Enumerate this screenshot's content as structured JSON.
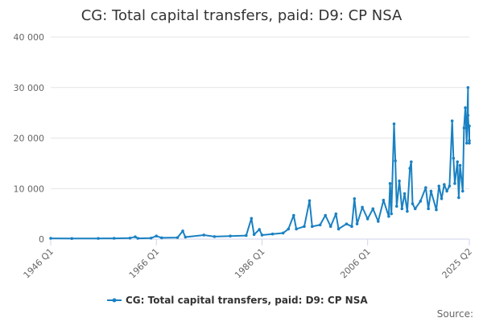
{
  "chart_data": {
    "type": "line",
    "title": "CG: Total capital transfers, paid: D9: CP NSA",
    "xlabel": "",
    "ylabel": "",
    "x_range": [
      "1946 Q1",
      "2025 Q2"
    ],
    "x_tick_labels": [
      "1946 Q1",
      "1966 Q1",
      "1986 Q1",
      "2006 Q1",
      "2025 Q2"
    ],
    "y_ticks": [
      0,
      10000,
      20000,
      30000,
      40000
    ],
    "y_tick_labels": [
      "0",
      "10 000",
      "20 000",
      "30 000",
      "40 000"
    ],
    "ylim": [
      0,
      40000
    ],
    "grid": true,
    "legend_position": "bottom",
    "colors": {
      "series": "#1a81c2"
    },
    "series": [
      {
        "name": "CG: Total capital transfers, paid: D9: CP NSA",
        "points": [
          [
            "1946 Q1",
            150
          ],
          [
            "1950 Q1",
            120
          ],
          [
            "1955 Q1",
            130
          ],
          [
            "1958 Q1",
            150
          ],
          [
            "1961 Q1",
            200
          ],
          [
            "1962 Q1",
            450
          ],
          [
            "1962 Q3",
            150
          ],
          [
            "1965 Q1",
            200
          ],
          [
            "1966 Q1",
            600
          ],
          [
            "1967 Q1",
            250
          ],
          [
            "1970 Q1",
            300
          ],
          [
            "1971 Q1",
            1600
          ],
          [
            "1971 Q3",
            400
          ],
          [
            "1975 Q1",
            800
          ],
          [
            "1977 Q1",
            500
          ],
          [
            "1980 Q1",
            600
          ],
          [
            "1983 Q1",
            700
          ],
          [
            "1984 Q1",
            4100
          ],
          [
            "1984 Q3",
            900
          ],
          [
            "1985 Q3",
            1900
          ],
          [
            "1986 Q1",
            800
          ],
          [
            "1988 Q1",
            1000
          ],
          [
            "1990 Q1",
            1200
          ],
          [
            "1991 Q1",
            2000
          ],
          [
            "1992 Q1",
            4700
          ],
          [
            "1992 Q3",
            2000
          ],
          [
            "1994 Q1",
            2500
          ],
          [
            "1995 Q1",
            7600
          ],
          [
            "1995 Q3",
            2500
          ],
          [
            "1997 Q1",
            2800
          ],
          [
            "1998 Q1",
            4700
          ],
          [
            "1999 Q1",
            2500
          ],
          [
            "2000 Q1",
            5000
          ],
          [
            "2000 Q3",
            2000
          ],
          [
            "2002 Q1",
            3000
          ],
          [
            "2003 Q1",
            2500
          ],
          [
            "2003 Q3",
            8000
          ],
          [
            "2004 Q1",
            3000
          ],
          [
            "2005 Q1",
            6300
          ],
          [
            "2006 Q1",
            4000
          ],
          [
            "2007 Q1",
            6000
          ],
          [
            "2008 Q1",
            3500
          ],
          [
            "2009 Q1",
            7700
          ],
          [
            "2010 Q1",
            4500
          ],
          [
            "2010 Q2",
            11000
          ],
          [
            "2010 Q3",
            5000
          ],
          [
            "2011 Q1",
            22800
          ],
          [
            "2011 Q2",
            15500
          ],
          [
            "2011 Q3",
            6500
          ],
          [
            "2012 Q1",
            11500
          ],
          [
            "2012 Q3",
            6000
          ],
          [
            "2013 Q1",
            9000
          ],
          [
            "2013 Q3",
            5500
          ],
          [
            "2014 Q1",
            14000
          ],
          [
            "2014 Q2",
            15300
          ],
          [
            "2014 Q3",
            7000
          ],
          [
            "2015 Q1",
            6000
          ],
          [
            "2016 Q1",
            7500
          ],
          [
            "2017 Q1",
            10200
          ],
          [
            "2017 Q3",
            6000
          ],
          [
            "2018 Q1",
            9500
          ],
          [
            "2019 Q1",
            5800
          ],
          [
            "2019 Q3",
            10500
          ],
          [
            "2020 Q1",
            8000
          ],
          [
            "2020 Q3",
            10800
          ],
          [
            "2021 Q1",
            9500
          ],
          [
            "2021 Q3",
            10500
          ],
          [
            "2022 Q1",
            23400
          ],
          [
            "2022 Q2",
            16000
          ],
          [
            "2022 Q3",
            11000
          ],
          [
            "2023 Q1",
            15300
          ],
          [
            "2023 Q2",
            8200
          ],
          [
            "2023 Q3",
            14600
          ],
          [
            "2024 Q1",
            9500
          ],
          [
            "2024 Q2",
            22000
          ],
          [
            "2024 Q3",
            26000
          ],
          [
            "2024 Q4",
            19000
          ],
          [
            "2025 Q1",
            30000
          ],
          [
            "2025 Q1",
            24500
          ],
          [
            "2025 Q2",
            19500
          ],
          [
            "2025 Q2",
            22400
          ],
          [
            "2025 Q2",
            19000
          ]
        ]
      }
    ]
  },
  "footer": {
    "source_label": "Source:"
  }
}
